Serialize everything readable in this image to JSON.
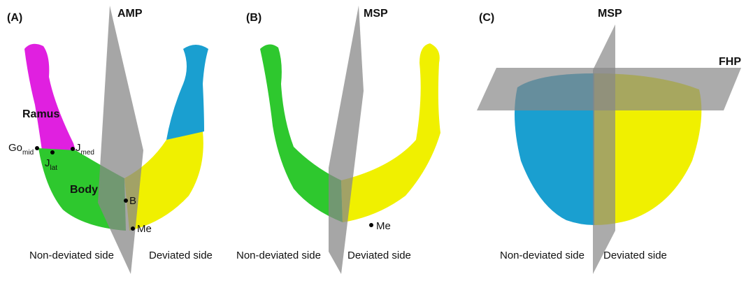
{
  "panels": [
    {
      "label": "(A)",
      "plane_labels": [
        "AMP"
      ],
      "annotations": [
        {
          "base": "Ramus"
        },
        {
          "base": "Body"
        },
        {
          "base": "Go",
          "sub": "mid"
        },
        {
          "base": "J",
          "sub": "lat"
        },
        {
          "base": "J",
          "sub": "med"
        },
        {
          "base": "B"
        },
        {
          "base": "Me"
        }
      ],
      "sides": [
        "Non-deviated side",
        "Deviated side"
      ]
    },
    {
      "label": "(B)",
      "plane_labels": [
        "MSP"
      ],
      "annotations": [
        {
          "base": "Me"
        }
      ],
      "sides": [
        "Non-deviated side",
        "Deviated side"
      ]
    },
    {
      "label": "(C)",
      "plane_labels": [
        "MSP",
        "FHP"
      ],
      "annotations": [],
      "sides": [
        "Non-deviated side",
        "Deviated side"
      ]
    }
  ]
}
